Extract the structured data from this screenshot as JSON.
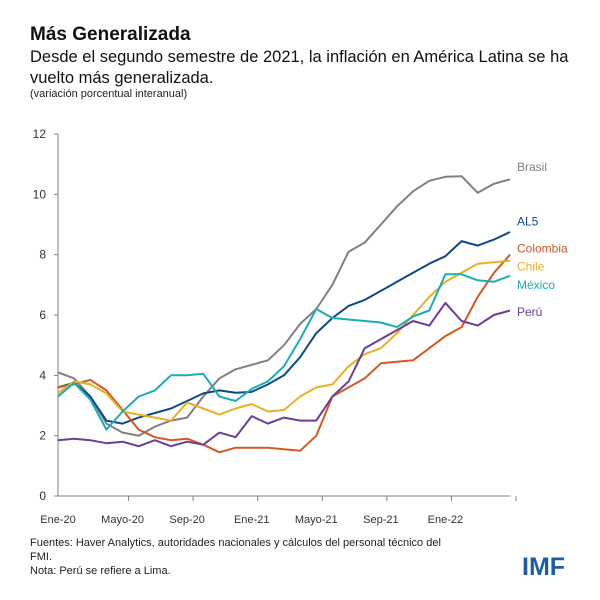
{
  "header": {
    "title": "Más Generalizada",
    "subtitle": "Desde el segundo semestre de 2021, la inflación en América Latina se ha vuelto más generalizada.",
    "units": "(variación porcentual interanual)"
  },
  "footer": {
    "sources": "Fuentes: Haver Analytics, autoridades nacionales y cálculos del personal técnico del FMI.",
    "note": "Nota: Perú se refiere a Lima.",
    "logo": "IMF"
  },
  "chart_data": {
    "type": "line",
    "title": "Más Generalizada",
    "ylabel": "",
    "xlabel": "",
    "ylim": [
      0,
      12
    ],
    "yticks": [
      0,
      2,
      4,
      6,
      8,
      10,
      12
    ],
    "x": [
      "Ene-20",
      "Feb-20",
      "Mar-20",
      "Abr-20",
      "Mayo-20",
      "Jun-20",
      "Jul-20",
      "Ago-20",
      "Sep-20",
      "Oct-20",
      "Nov-20",
      "Dic-20",
      "Ene-21",
      "Feb-21",
      "Mar-21",
      "Abr-21",
      "Mayo-21",
      "Jun-21",
      "Jul-21",
      "Ago-21",
      "Sep-21",
      "Oct-21",
      "Nov-21",
      "Dic-21",
      "Ene-22",
      "Feb-22",
      "Mar-22",
      "Abr-22",
      "Mayo-22"
    ],
    "xtick_labels": [
      "Ene-20",
      "Mayo-20",
      "Sep-20",
      "Ene-21",
      "Mayo-21",
      "Sep-21",
      "Ene-22"
    ],
    "grid": false,
    "legend": "line-end labels, right",
    "series": [
      {
        "name": "Brasil",
        "color": "#808080",
        "values": [
          4.1,
          3.9,
          3.3,
          2.4,
          2.1,
          2.0,
          2.3,
          2.5,
          2.6,
          3.3,
          3.9,
          4.2,
          4.35,
          4.5,
          5.0,
          5.7,
          6.2,
          7.0,
          8.1,
          8.4,
          9.0,
          9.6,
          10.1,
          10.45,
          10.58,
          10.6,
          10.05,
          10.35,
          10.5
        ]
      },
      {
        "name": "AL5",
        "color": "#0d4a86",
        "values": [
          3.6,
          3.75,
          3.3,
          2.5,
          2.4,
          2.6,
          2.75,
          2.9,
          3.15,
          3.4,
          3.5,
          3.42,
          3.45,
          3.7,
          4.0,
          4.6,
          5.4,
          5.9,
          6.3,
          6.5,
          6.8,
          7.1,
          7.4,
          7.7,
          7.95,
          8.45,
          8.3,
          8.5,
          8.75
        ]
      },
      {
        "name": "Colombia",
        "color": "#d4581f",
        "values": [
          3.6,
          3.7,
          3.85,
          3.5,
          2.85,
          2.2,
          1.95,
          1.85,
          1.9,
          1.7,
          1.45,
          1.6,
          1.6,
          1.6,
          1.55,
          1.5,
          2.0,
          3.3,
          3.6,
          3.9,
          4.4,
          4.45,
          4.5,
          4.9,
          5.3,
          5.6,
          6.6,
          7.4,
          8.0
        ]
      },
      {
        "name": "Chile",
        "color": "#e8b022",
        "values": [
          3.4,
          3.8,
          3.7,
          3.4,
          2.8,
          2.7,
          2.6,
          2.5,
          3.1,
          2.9,
          2.7,
          2.9,
          3.05,
          2.8,
          2.85,
          3.3,
          3.6,
          3.7,
          4.3,
          4.7,
          4.9,
          5.4,
          6.0,
          6.6,
          7.1,
          7.4,
          7.7,
          7.75,
          7.8
        ]
      },
      {
        "name": "México",
        "color": "#1aaeb3",
        "values": [
          3.3,
          3.75,
          3.2,
          2.2,
          2.8,
          3.3,
          3.5,
          4.0,
          4.0,
          4.05,
          3.3,
          3.15,
          3.55,
          3.8,
          4.3,
          5.2,
          6.2,
          5.9,
          5.85,
          5.8,
          5.75,
          5.6,
          5.95,
          6.15,
          7.35,
          7.35,
          7.15,
          7.1,
          7.3
        ]
      },
      {
        "name": "Perú",
        "color": "#6a3d9a",
        "values": [
          1.85,
          1.9,
          1.85,
          1.75,
          1.8,
          1.65,
          1.85,
          1.65,
          1.8,
          1.7,
          2.1,
          1.95,
          2.65,
          2.4,
          2.6,
          2.5,
          2.5,
          3.3,
          3.8,
          4.9,
          5.2,
          5.5,
          5.8,
          5.65,
          6.4,
          5.8,
          5.65,
          6.0,
          6.15
        ]
      }
    ]
  }
}
